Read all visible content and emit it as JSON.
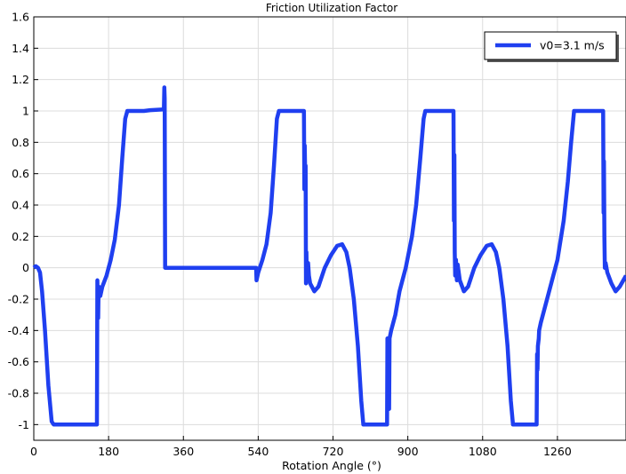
{
  "chart_data": {
    "type": "line",
    "title": "Friction Utilization Factor",
    "xlabel": "Rotation Angle  (°)",
    "ylabel": "",
    "xlim": [
      0,
      1425
    ],
    "ylim": [
      -1.1,
      1.6
    ],
    "x_ticks": [
      0,
      180,
      360,
      540,
      720,
      900,
      1080,
      1260
    ],
    "y_ticks": [
      -1,
      -0.8,
      -0.6,
      -0.4,
      -0.2,
      0,
      0.2,
      0.4,
      0.6,
      0.8,
      1,
      1.2,
      1.4,
      1.6
    ],
    "grid": true,
    "legend_position": "top-right",
    "series": [
      {
        "name": "v0=3.1 m/s",
        "color": "#1f3ff0",
        "points": [
          [
            0,
            0
          ],
          [
            5,
            0.01
          ],
          [
            10,
            0.0
          ],
          [
            15,
            -0.03
          ],
          [
            20,
            -0.15
          ],
          [
            27,
            -0.4
          ],
          [
            35,
            -0.75
          ],
          [
            43,
            -0.98
          ],
          [
            48,
            -1
          ],
          [
            100,
            -1
          ],
          [
            152,
            -1
          ],
          [
            153,
            -0.08
          ],
          [
            155,
            -0.32
          ],
          [
            156,
            -0.12
          ],
          [
            160,
            -0.18
          ],
          [
            165,
            -0.12
          ],
          [
            175,
            -0.05
          ],
          [
            185,
            0.05
          ],
          [
            195,
            0.18
          ],
          [
            205,
            0.4
          ],
          [
            213,
            0.7
          ],
          [
            220,
            0.95
          ],
          [
            225,
            1
          ],
          [
            265,
            1
          ],
          [
            280,
            1.005
          ],
          [
            313,
            1.01
          ],
          [
            314,
            1.15
          ],
          [
            315,
            1.08
          ],
          [
            316,
            0
          ],
          [
            400,
            0
          ],
          [
            535,
            0
          ],
          [
            536,
            -0.08
          ],
          [
            540,
            -0.03
          ],
          [
            550,
            0.05
          ],
          [
            560,
            0.15
          ],
          [
            570,
            0.35
          ],
          [
            578,
            0.65
          ],
          [
            585,
            0.95
          ],
          [
            590,
            1
          ],
          [
            650,
            1
          ],
          [
            651,
            0.5
          ],
          [
            652,
            0.78
          ],
          [
            653,
            0.6
          ],
          [
            654,
            0.65
          ],
          [
            655,
            -0.1
          ],
          [
            656,
            0.1
          ],
          [
            657,
            -0.08
          ],
          [
            660,
            0.03
          ],
          [
            662,
            -0.05
          ],
          [
            665,
            -0.1
          ],
          [
            675,
            -0.15
          ],
          [
            685,
            -0.12
          ],
          [
            700,
            0.0
          ],
          [
            715,
            0.08
          ],
          [
            730,
            0.14
          ],
          [
            742,
            0.15
          ],
          [
            752,
            0.1
          ],
          [
            760,
            0.0
          ],
          [
            770,
            -0.2
          ],
          [
            780,
            -0.5
          ],
          [
            788,
            -0.85
          ],
          [
            793,
            -1
          ],
          [
            850,
            -1
          ],
          [
            851,
            -0.45
          ],
          [
            852,
            -0.65
          ],
          [
            853,
            -0.5
          ],
          [
            855,
            -0.9
          ],
          [
            856,
            -0.45
          ],
          [
            860,
            -0.4
          ],
          [
            870,
            -0.3
          ],
          [
            880,
            -0.15
          ],
          [
            895,
            0.0
          ],
          [
            910,
            0.2
          ],
          [
            920,
            0.4
          ],
          [
            930,
            0.7
          ],
          [
            938,
            0.95
          ],
          [
            942,
            1
          ],
          [
            1010,
            1
          ],
          [
            1011,
            0.3
          ],
          [
            1012,
            0.72
          ],
          [
            1013,
            0.1
          ],
          [
            1014,
            -0.05
          ],
          [
            1016,
            0.05
          ],
          [
            1018,
            -0.08
          ],
          [
            1020,
            0.02
          ],
          [
            1025,
            -0.08
          ],
          [
            1035,
            -0.15
          ],
          [
            1045,
            -0.12
          ],
          [
            1060,
            0.0
          ],
          [
            1075,
            0.08
          ],
          [
            1090,
            0.14
          ],
          [
            1102,
            0.15
          ],
          [
            1112,
            0.1
          ],
          [
            1120,
            0.0
          ],
          [
            1130,
            -0.2
          ],
          [
            1140,
            -0.5
          ],
          [
            1148,
            -0.85
          ],
          [
            1153,
            -1
          ],
          [
            1210,
            -1
          ],
          [
            1211,
            -0.55
          ],
          [
            1212,
            -0.65
          ],
          [
            1213,
            -0.5
          ],
          [
            1215,
            -0.45
          ],
          [
            1216,
            -0.4
          ],
          [
            1220,
            -0.35
          ],
          [
            1230,
            -0.25
          ],
          [
            1245,
            -0.1
          ],
          [
            1260,
            0.05
          ],
          [
            1275,
            0.3
          ],
          [
            1285,
            0.55
          ],
          [
            1293,
            0.8
          ],
          [
            1300,
            1
          ],
          [
            1370,
            1
          ],
          [
            1371,
            0.35
          ],
          [
            1372,
            0.68
          ],
          [
            1373,
            0.2
          ],
          [
            1374,
            0.0
          ],
          [
            1376,
            0.03
          ],
          [
            1380,
            -0.03
          ],
          [
            1390,
            -0.1
          ],
          [
            1400,
            -0.15
          ],
          [
            1410,
            -0.12
          ],
          [
            1425,
            -0.05
          ]
        ]
      }
    ]
  }
}
